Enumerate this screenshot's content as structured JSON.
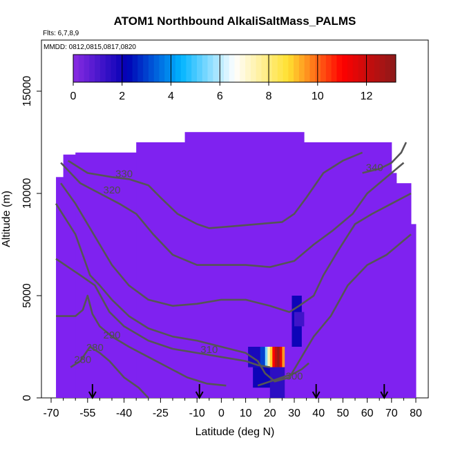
{
  "chart_data": {
    "type": "heatmap",
    "title": "ATOM1 Northbound AlkaliSaltMass_PALMS",
    "subtitle": "Flts: 6,7,8,9",
    "annotation": "MMDD: 0812,0815,0817,0820",
    "xlabel": "Latitude (deg N)",
    "ylabel": "Altitude (m)",
    "xlim": [
      -70,
      80
    ],
    "ylim": [
      0,
      17500
    ],
    "x_ticks": [
      -70,
      -55,
      -40,
      -25,
      -10,
      0,
      10,
      20,
      30,
      40,
      50,
      60,
      70,
      80
    ],
    "x_tick_labels": [
      "-70",
      "-55",
      "-40",
      "-25",
      "-10",
      "0",
      "10",
      "20",
      "30",
      "40",
      "50",
      "60",
      "70",
      "80"
    ],
    "x_minor_ticks": [
      -65,
      -60,
      -50,
      -45,
      -35,
      -30,
      -20,
      -15,
      -5,
      5,
      15,
      25,
      35,
      45,
      55,
      65,
      75
    ],
    "y_ticks": [
      0,
      5000,
      10000,
      15000
    ],
    "y_tick_labels": [
      "0",
      "5000",
      "10000",
      "15000"
    ],
    "colorbar": {
      "min": 0,
      "max": 13.2,
      "ticks": [
        0,
        2,
        4,
        6,
        8,
        10,
        12
      ],
      "tick_labels": [
        "0",
        "2",
        "4",
        "6",
        "8",
        "10",
        "12"
      ],
      "colors": [
        "#8a2be2",
        "#0000b4",
        "#00b4ff",
        "#ffffff",
        "#ffe030",
        "#ff0000",
        "#8b1a1a"
      ]
    },
    "background_value": 0,
    "background_color": "#7f22f0",
    "coverage": [
      {
        "lat": [
          -68,
          -65
        ],
        "top": 10800
      },
      {
        "lat": [
          -65,
          -60
        ],
        "top": 11900
      },
      {
        "lat": [
          -60,
          -35
        ],
        "top": 12000
      },
      {
        "lat": [
          -35,
          -15
        ],
        "top": 12500
      },
      {
        "lat": [
          -15,
          34
        ],
        "top": 13000
      },
      {
        "lat": [
          34,
          60
        ],
        "top": 12500
      },
      {
        "lat": [
          60,
          70
        ],
        "top": 12500
      },
      {
        "lat": [
          70,
          72
        ],
        "top": 11000
      },
      {
        "lat": [
          72,
          78
        ],
        "top": 10500
      },
      {
        "lat": [
          78,
          80
        ],
        "top": 8500
      }
    ],
    "hotspots": [
      {
        "lat": [
          11,
          16
        ],
        "alt": [
          1500,
          2500
        ],
        "value": 1.8
      },
      {
        "lat": [
          16,
          18
        ],
        "alt": [
          1500,
          2500
        ],
        "value": 3.0
      },
      {
        "lat": [
          18,
          19
        ],
        "alt": [
          1500,
          2500
        ],
        "value": 5.5
      },
      {
        "lat": [
          19,
          20
        ],
        "alt": [
          1500,
          2500
        ],
        "value": 7.5
      },
      {
        "lat": [
          20,
          21
        ],
        "alt": [
          1500,
          2500
        ],
        "value": 9.0
      },
      {
        "lat": [
          21,
          22
        ],
        "alt": [
          1500,
          2500
        ],
        "value": 11.0
      },
      {
        "lat": [
          22,
          23
        ],
        "alt": [
          1500,
          2500
        ],
        "value": 12.3
      },
      {
        "lat": [
          23,
          24
        ],
        "alt": [
          1500,
          2500
        ],
        "value": 13.0
      },
      {
        "lat": [
          24,
          25
        ],
        "alt": [
          1500,
          2500
        ],
        "value": 11.5
      },
      {
        "lat": [
          25,
          26
        ],
        "alt": [
          1500,
          2500
        ],
        "value": 9.5
      },
      {
        "lat": [
          13,
          20
        ],
        "alt": [
          500,
          1500
        ],
        "value": 2.0
      },
      {
        "lat": [
          20,
          26
        ],
        "alt": [
          0,
          1500
        ],
        "value": 1.5
      },
      {
        "lat": [
          29,
          33
        ],
        "alt": [
          2500,
          5000
        ],
        "value": 2.0
      },
      {
        "lat": [
          30,
          34
        ],
        "alt": [
          3500,
          4200
        ],
        "value": 1.2
      }
    ],
    "contours": [
      {
        "label": "280",
        "label_at": [
          -52,
          2300
        ],
        "points": [
          [
            -68,
            4000
          ],
          [
            -60,
            4000
          ],
          [
            -57,
            4300
          ],
          [
            -55,
            5000
          ],
          [
            -53,
            4100
          ],
          [
            -50,
            3500
          ],
          [
            -45,
            3000
          ],
          [
            -38,
            2500
          ],
          [
            -30,
            2000
          ],
          [
            -22,
            1500
          ],
          [
            -14,
            1000
          ],
          [
            -6,
            700
          ],
          [
            2,
            600
          ]
        ]
      },
      {
        "label": "280",
        "label_at": [
          -57,
          1700
        ],
        "points": [
          [
            -62,
            1500
          ],
          [
            -58,
            1800
          ],
          [
            -54,
            2500
          ],
          [
            -50,
            2200
          ],
          [
            -46,
            1800
          ],
          [
            -40,
            1000
          ],
          [
            -34,
            500
          ],
          [
            -30,
            0
          ]
        ]
      },
      {
        "label": "290",
        "label_at": [
          -45,
          2900
        ],
        "points": [
          [
            -68,
            6800
          ],
          [
            -58,
            6000
          ],
          [
            -52,
            5500
          ],
          [
            -46,
            4200
          ],
          [
            -40,
            3500
          ],
          [
            -30,
            2800
          ],
          [
            -20,
            2400
          ],
          [
            -10,
            2200
          ],
          [
            0,
            2000
          ],
          [
            10,
            1800
          ],
          [
            15,
            1600
          ],
          [
            20,
            1500
          ]
        ]
      },
      {
        "label": "300",
        "label_at": [
          30,
          900
        ],
        "points": [
          [
            15,
            600
          ],
          [
            20,
            800
          ],
          [
            25,
            1000
          ],
          [
            30,
            1200
          ],
          [
            33,
            1400
          ],
          [
            36,
            1700
          ]
        ]
      },
      {
        "label": "310",
        "label_at": [
          -5,
          2200
        ],
        "points": [
          [
            -68,
            9500
          ],
          [
            -60,
            8000
          ],
          [
            -54,
            6000
          ],
          [
            -50,
            5500
          ],
          [
            -45,
            4800
          ],
          [
            -38,
            4000
          ],
          [
            -30,
            3400
          ],
          [
            -20,
            3000
          ],
          [
            -10,
            2800
          ],
          [
            0,
            2500
          ],
          [
            10,
            2200
          ],
          [
            15,
            1800
          ],
          [
            18,
            1200
          ],
          [
            22,
            800
          ],
          [
            28,
            1000
          ],
          [
            33,
            2000
          ],
          [
            38,
            3000
          ],
          [
            45,
            4000
          ],
          [
            52,
            5500
          ],
          [
            60,
            6500
          ],
          [
            68,
            7000
          ],
          [
            73,
            7500
          ],
          [
            78,
            8000
          ]
        ]
      },
      {
        "label": "",
        "label_at": [
          0,
          0
        ],
        "points": [
          [
            -66,
            10500
          ],
          [
            -60,
            9500
          ],
          [
            -55,
            8500
          ],
          [
            -50,
            7500
          ],
          [
            -45,
            6500
          ],
          [
            -38,
            5500
          ],
          [
            -30,
            4800
          ],
          [
            -20,
            4500
          ],
          [
            -10,
            4600
          ],
          [
            0,
            4800
          ],
          [
            10,
            4800
          ],
          [
            20,
            4500
          ],
          [
            28,
            4200
          ],
          [
            32,
            4500
          ],
          [
            38,
            5000
          ],
          [
            42,
            6000
          ],
          [
            48,
            7200
          ],
          [
            55,
            8500
          ],
          [
            62,
            9000
          ],
          [
            70,
            9500
          ],
          [
            78,
            10000
          ]
        ]
      },
      {
        "label": "320",
        "label_at": [
          -45,
          10000
        ],
        "points": [
          [
            -66,
            11500
          ],
          [
            -58,
            10500
          ],
          [
            -50,
            10000
          ],
          [
            -42,
            9500
          ],
          [
            -35,
            9000
          ],
          [
            -28,
            8000
          ],
          [
            -20,
            7000
          ],
          [
            -10,
            6500
          ],
          [
            0,
            6500
          ],
          [
            10,
            6500
          ],
          [
            20,
            6400
          ],
          [
            30,
            6700
          ],
          [
            38,
            7500
          ],
          [
            46,
            8200
          ],
          [
            54,
            9000
          ],
          [
            60,
            10000
          ],
          [
            68,
            10800
          ],
          [
            75,
            11500
          ]
        ]
      },
      {
        "label": "330",
        "label_at": [
          -40,
          10800
        ],
        "points": [
          [
            -63,
            11600
          ],
          [
            -55,
            11000
          ],
          [
            -45,
            10800
          ],
          [
            -38,
            10700
          ],
          [
            -30,
            10400
          ],
          [
            -25,
            9800
          ],
          [
            -18,
            9000
          ],
          [
            -10,
            8500
          ],
          [
            -5,
            8300
          ],
          [
            5,
            8400
          ],
          [
            15,
            8500
          ],
          [
            25,
            8600
          ],
          [
            30,
            9000
          ],
          [
            35,
            9800
          ],
          [
            42,
            11000
          ],
          [
            50,
            11600
          ],
          [
            58,
            12000
          ]
        ]
      },
      {
        "label": "340",
        "label_at": [
          63,
          11100
        ],
        "points": [
          [
            58,
            11000
          ],
          [
            65,
            11200
          ],
          [
            70,
            11500
          ],
          [
            74,
            12000
          ],
          [
            76,
            12500
          ]
        ]
      }
    ],
    "arrow_latitudes": [
      -53,
      -9,
      39,
      67
    ]
  }
}
